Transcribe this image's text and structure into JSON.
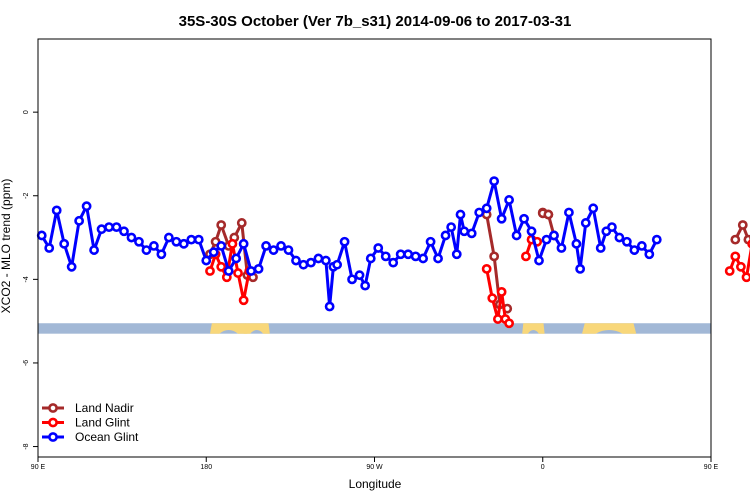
{
  "chart_data": {
    "type": "line",
    "title": "35S-30S October (Ver 7b_s31)   2014-09-06 to 2017-03-31",
    "xlabel": "Longitude",
    "ylabel": "XCO2 - MLO trend (ppm)",
    "xlim": [
      -90,
      270
    ],
    "ylim": [
      -8.25,
      1.75
    ],
    "x_ticks": [
      {
        "value": -90,
        "label": "90 E"
      },
      {
        "value": 0,
        "label": "180"
      },
      {
        "value": 90,
        "label": "90 W"
      },
      {
        "value": 180,
        "label": "0"
      },
      {
        "value": 270,
        "label": "90 E"
      },
      {
        "value": 360,
        "label": "180"
      }
    ],
    "y_ticks": [
      {
        "value": 0,
        "label": "0"
      },
      {
        "value": -2,
        "label": "-2"
      },
      {
        "value": -4,
        "label": "-4"
      },
      {
        "value": -6,
        "label": "-6"
      },
      {
        "value": -8,
        "label": "-8"
      }
    ],
    "legend_position": "bottom-left",
    "grid": false,
    "land_band": {
      "y_top": -5.05,
      "y_bottom": -5.3,
      "ocean_color": "#a2b8d6",
      "land_color": "#f8d77a",
      "land_segments": [
        [
          2,
          22
        ],
        [
          20,
          34
        ],
        [
          169,
          181
        ],
        [
          201,
          230
        ],
        [
          300,
          310
        ],
        [
          336,
          360
        ]
      ]
    },
    "series": [
      {
        "name": "Land Nadir",
        "color": "#a52a2a",
        "segments": [
          [
            [
              2,
              -3.4
            ],
            [
              5,
              -3.1
            ],
            [
              8,
              -2.7
            ],
            [
              12,
              -3.2
            ],
            [
              15,
              -3.0
            ],
            [
              19,
              -2.65
            ],
            [
              22,
              -3.9
            ],
            [
              25,
              -3.95
            ]
          ],
          [
            [
              180,
              -2.4
            ],
            [
              183,
              -2.45
            ],
            [
              186,
              -2.95
            ]
          ],
          [
            [
              283,
              -3.05
            ],
            [
              287,
              -2.7
            ],
            [
              290,
              -3.05
            ],
            [
              293,
              -3.0
            ],
            [
              296,
              -2.65
            ],
            [
              299,
              -3.95
            ]
          ]
        ]
      },
      {
        "name": "Land Glint",
        "color": "#ff0000",
        "segments": [
          [
            [
              2,
              -3.8
            ],
            [
              5,
              -3.4
            ],
            [
              8,
              -3.7
            ],
            [
              11,
              -3.95
            ],
            [
              14,
              -3.15
            ],
            [
              17,
              -3.85
            ],
            [
              20,
              -4.5
            ],
            [
              23,
              -3.8
            ]
          ],
          [
            [
              171,
              -3.45
            ],
            [
              174,
              -3.05
            ],
            [
              177,
              -3.1
            ]
          ],
          [
            [
              280,
              -3.8
            ],
            [
              283,
              -3.45
            ],
            [
              286,
              -3.7
            ],
            [
              289,
              -3.95
            ],
            [
              292,
              -3.15
            ],
            [
              295,
              -3.85
            ],
            [
              298,
              -4.5
            ],
            [
              301,
              -3.8
            ]
          ]
        ]
      },
      {
        "name": "Land Nadir",
        "color": "#a52a2a",
        "segments": [
          [
            [
              180,
              -2.42
            ],
            [
              183,
              -2.45
            ]
          ],
          [
            [
              150,
              -2.45
            ],
            [
              154,
              -3.45
            ],
            [
              157,
              -4.6
            ],
            [
              161,
              -4.7
            ]
          ]
        ]
      },
      {
        "name": "Land Glint",
        "color": "#ff0000",
        "segments": [
          [
            [
              150,
              -3.75
            ],
            [
              153,
              -4.45
            ],
            [
              156,
              -4.95
            ],
            [
              158,
              -4.3
            ],
            [
              160,
              -4.95
            ],
            [
              162,
              -5.05
            ]
          ]
        ]
      },
      {
        "name": "Ocean Glint",
        "color": "#0000ff",
        "segments": [
          [
            [
              -88,
              -2.95
            ],
            [
              -84,
              -3.25
            ],
            [
              -80,
              -2.35
            ],
            [
              -76,
              -3.15
            ],
            [
              -72,
              -3.7
            ],
            [
              -68,
              -2.6
            ],
            [
              -64,
              -2.25
            ],
            [
              -60,
              -3.3
            ],
            [
              -56,
              -2.8
            ],
            [
              -52,
              -2.75
            ],
            [
              -48,
              -2.75
            ],
            [
              -44,
              -2.85
            ],
            [
              -40,
              -3.0
            ],
            [
              -36,
              -3.1
            ],
            [
              -32,
              -3.3
            ],
            [
              -28,
              -3.2
            ],
            [
              -24,
              -3.4
            ],
            [
              -20,
              -3.0
            ],
            [
              -16,
              -3.1
            ],
            [
              -12,
              -3.15
            ],
            [
              -8,
              -3.05
            ],
            [
              -4,
              -3.05
            ],
            [
              0,
              -3.55
            ],
            [
              4,
              -3.35
            ],
            [
              8,
              -3.2
            ],
            [
              12,
              -3.8
            ],
            [
              16,
              -3.5
            ],
            [
              20,
              -3.15
            ],
            [
              24,
              -3.8
            ],
            [
              28,
              -3.75
            ],
            [
              32,
              -3.2
            ],
            [
              36,
              -3.3
            ],
            [
              40,
              -3.2
            ],
            [
              44,
              -3.3
            ],
            [
              48,
              -3.55
            ],
            [
              52,
              -3.65
            ],
            [
              56,
              -3.6
            ],
            [
              60,
              -3.5
            ],
            [
              64,
              -3.55
            ],
            [
              66,
              -4.65
            ],
            [
              68,
              -3.7
            ],
            [
              70,
              -3.65
            ],
            [
              74,
              -3.1
            ],
            [
              78,
              -4.0
            ],
            [
              82,
              -3.9
            ],
            [
              85,
              -4.15
            ],
            [
              88,
              -3.5
            ],
            [
              92,
              -3.25
            ],
            [
              96,
              -3.45
            ],
            [
              100,
              -3.6
            ],
            [
              104,
              -3.4
            ],
            [
              108,
              -3.4
            ],
            [
              112,
              -3.45
            ],
            [
              116,
              -3.5
            ],
            [
              120,
              -3.1
            ],
            [
              124,
              -3.5
            ],
            [
              128,
              -2.95
            ],
            [
              131,
              -2.75
            ],
            [
              134,
              -3.4
            ],
            [
              136,
              -2.45
            ],
            [
              138,
              -2.85
            ],
            [
              142,
              -2.9
            ],
            [
              146,
              -2.4
            ],
            [
              150,
              -2.3
            ],
            [
              154,
              -1.65
            ],
            [
              158,
              -2.55
            ],
            [
              162,
              -2.1
            ],
            [
              166,
              -2.95
            ],
            [
              170,
              -2.55
            ],
            [
              174,
              -2.85
            ],
            [
              178,
              -3.55
            ],
            [
              182,
              -3.05
            ],
            [
              186,
              -2.95
            ],
            [
              190,
              -3.25
            ],
            [
              194,
              -2.4
            ],
            [
              198,
              -3.15
            ],
            [
              200,
              -3.75
            ],
            [
              203,
              -2.65
            ],
            [
              207,
              -2.3
            ],
            [
              211,
              -3.25
            ],
            [
              214,
              -2.85
            ],
            [
              217,
              -2.75
            ],
            [
              221,
              -3.0
            ],
            [
              225,
              -3.1
            ],
            [
              229,
              -3.3
            ],
            [
              233,
              -3.2
            ],
            [
              237,
              -3.4
            ],
            [
              241,
              -3.05
            ]
          ]
        ]
      }
    ]
  }
}
